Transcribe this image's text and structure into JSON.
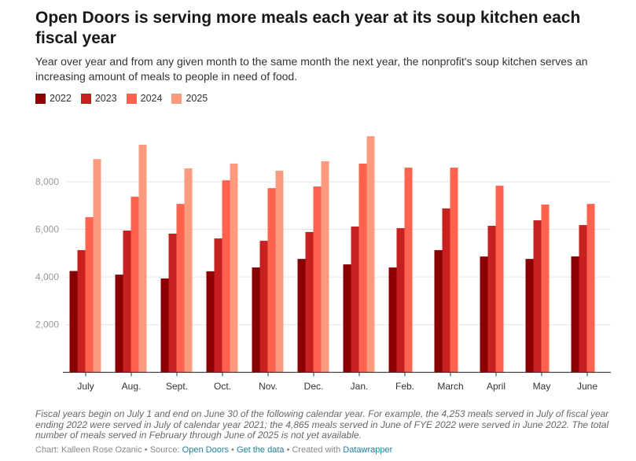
{
  "title": "Open Doors is serving more meals each year at its soup kitchen each fiscal year",
  "subtitle": "Year over year and from any given month to the same month the next year, the nonprofit's soup kitchen serves an increasing amount of meals to people in need of food.",
  "notes": "Fiscal years begin on July 1 and end on June 30 of the following calendar year. For example, the 4,253 meals served in July of fiscal year ending 2022 were served in July of calendar year 2021; the 4,865 meals served in June of FYE 2022 were served in June 2022. The total number of meals served in February through June of 2025 is not yet available.",
  "credit": {
    "prefix": "Chart: Kalleen Rose Ozanic • Source: ",
    "source": "Open Doors",
    "sep1": " • ",
    "data_link": "Get the data",
    "sep2": " • Created with ",
    "tool": "Datawrapper"
  },
  "chart_data": {
    "type": "bar",
    "title": "Open Doors is serving more meals each year at its soup kitchen each fiscal year",
    "xlabel": "",
    "ylabel": "",
    "ylim": [
      0,
      10000
    ],
    "yticks": [
      2000,
      4000,
      6000,
      8000
    ],
    "ytick_labels": [
      "2,000",
      "4,000",
      "6,000",
      "8,000"
    ],
    "grid": true,
    "legend": "top-left",
    "categories": [
      "July",
      "Aug.",
      "Sept.",
      "Oct.",
      "Nov.",
      "Dec.",
      "Jan.",
      "Feb.",
      "March",
      "April",
      "May",
      "June"
    ],
    "series": [
      {
        "name": "2022",
        "color": "#8b0000",
        "values": [
          4253,
          4100,
          3940,
          4240,
          4400,
          4760,
          4530,
          4400,
          5130,
          4860,
          4760,
          4865
        ]
      },
      {
        "name": "2023",
        "color": "#c62020",
        "values": [
          5130,
          5950,
          5820,
          5620,
          5520,
          5890,
          6120,
          6050,
          6880,
          6150,
          6380,
          6180
        ]
      },
      {
        "name": "2024",
        "color": "#fd634f",
        "values": [
          6510,
          7370,
          7070,
          8060,
          7730,
          7800,
          8760,
          8590,
          8590,
          7830,
          7040,
          7070
        ]
      },
      {
        "name": "2025",
        "color": "#fc9a80",
        "values": [
          8950,
          9550,
          8560,
          8760,
          8460,
          8860,
          9910,
          null,
          null,
          null,
          null,
          null
        ]
      }
    ]
  }
}
